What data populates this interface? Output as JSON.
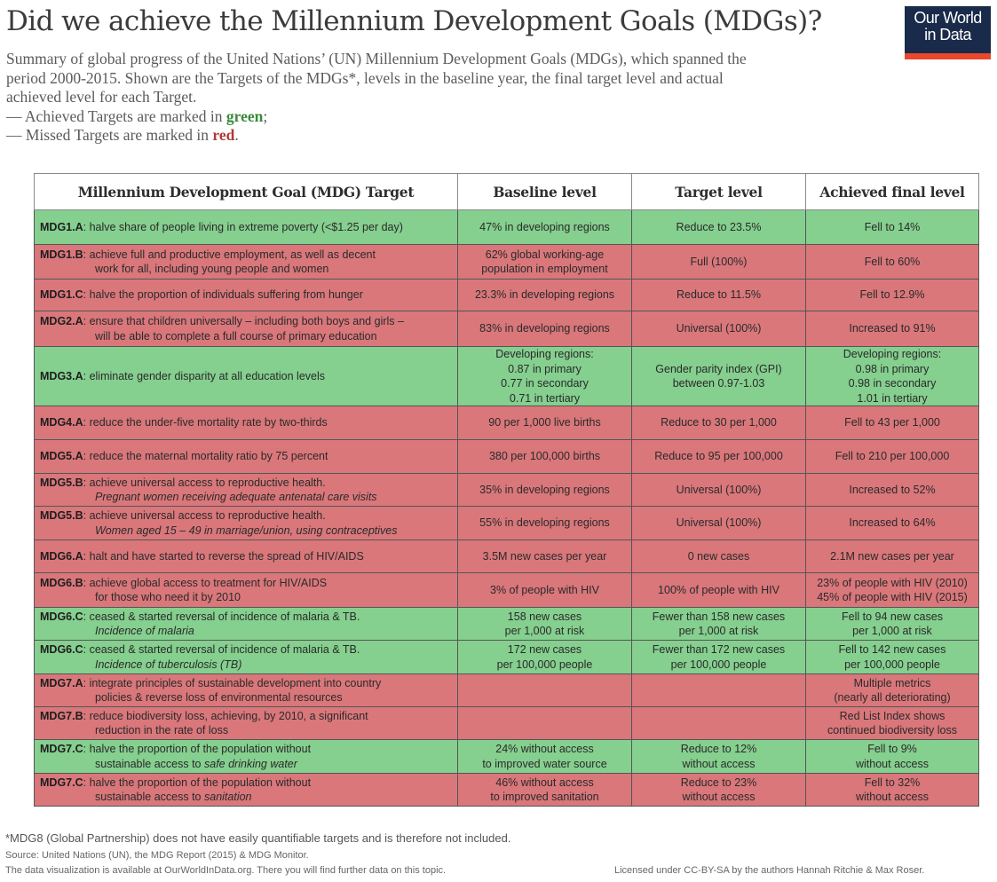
{
  "header": {
    "title": "Did we achieve the Millennium Development Goals (MDGs)?",
    "subtitle_lines": [
      "Summary of global progress of the United Nations’ (UN) Millennium Development Goals (MDGs), which spanned the",
      "period 2000-2015. Shown are the Targets of the MDGs*, levels in the baseline year, the final target level and actual",
      "achieved level for each Target."
    ],
    "legend": {
      "achieved_prefix": "— Achieved Targets are marked in ",
      "achieved_word": "green",
      "achieved_suffix": ";",
      "missed_prefix": "— Missed Targets are marked in ",
      "missed_word": "red",
      "missed_suffix": "."
    },
    "logo": {
      "line1": "Our World",
      "line2": "in Data"
    }
  },
  "colors": {
    "achieved": "#85cf8f",
    "missed": "#d9777b",
    "logo_bg": "#1a2a4a",
    "logo_bar": "#e8482c"
  },
  "chart_data": {
    "type": "table",
    "title": "Did we achieve the Millennium Development Goals (MDGs)?",
    "columns": [
      "Millennium Development Goal (MDG) Target",
      "Baseline level",
      "Target level",
      "Achieved final level"
    ],
    "rows": [
      {
        "code": "MDG1.A",
        "status": "achieved",
        "target": "halve share of people living in extreme poverty (<$1.25 per day)",
        "target_detail": "",
        "baseline": [
          "47% in developing regions"
        ],
        "target_level": [
          "Reduce to 23.5%"
        ],
        "achieved": [
          "Fell to 14%"
        ]
      },
      {
        "code": "MDG1.B",
        "status": "missed",
        "target": "achieve full and productive employment, as well as decent",
        "target_detail": "work for all, including young people and women",
        "baseline": [
          "62% global working-age",
          "population in employment"
        ],
        "target_level": [
          "Full (100%)"
        ],
        "achieved": [
          "Fell to 60%"
        ]
      },
      {
        "code": "MDG1.C",
        "status": "missed",
        "target": "halve the proportion of individuals suffering from hunger",
        "target_detail": "",
        "baseline": [
          "23.3% in developing regions"
        ],
        "target_level": [
          "Reduce to 11.5%"
        ],
        "achieved": [
          "Fell to 12.9%"
        ]
      },
      {
        "code": "MDG2.A",
        "status": "missed",
        "target": "ensure that children universally – including both boys and girls –",
        "target_detail": "will be able to complete a full course of primary education",
        "baseline": [
          "83% in developing regions"
        ],
        "target_level": [
          "Universal (100%)"
        ],
        "achieved": [
          "Increased to 91%"
        ]
      },
      {
        "code": "MDG3.A",
        "status": "achieved",
        "target": "eliminate gender disparity at all education levels",
        "target_detail": "",
        "baseline": [
          "Developing regions:",
          "0.87 in primary",
          "0.77 in secondary",
          "0.71 in tertiary"
        ],
        "target_level": [
          "Gender parity index (GPI)",
          "between 0.97-1.03"
        ],
        "achieved": [
          "Developing regions:",
          "0.98 in primary",
          "0.98 in secondary",
          "1.01 in tertiary"
        ]
      },
      {
        "code": "MDG4.A",
        "status": "missed",
        "target": "reduce the under-five mortality rate by two-thirds",
        "target_detail": "",
        "baseline": [
          "90 per 1,000 live births"
        ],
        "target_level": [
          "Reduce to 30 per 1,000"
        ],
        "achieved": [
          "Fell to 43 per 1,000"
        ]
      },
      {
        "code": "MDG5.A",
        "status": "missed",
        "target": "reduce the maternal mortality ratio by 75 percent",
        "target_detail": "",
        "baseline": [
          "380 per 100,000 births"
        ],
        "target_level": [
          "Reduce to 95 per 100,000"
        ],
        "achieved": [
          "Fell to 210 per 100,000"
        ]
      },
      {
        "code": "MDG5.B",
        "status": "missed",
        "target": "achieve universal access to reproductive health.",
        "target_detail": "Pregnant women receiving adequate antenatal care visits",
        "detail_italic": true,
        "baseline": [
          "35% in developing regions"
        ],
        "target_level": [
          "Universal (100%)"
        ],
        "achieved": [
          "Increased to 52%"
        ]
      },
      {
        "code": "MDG5.B",
        "status": "missed",
        "target": "achieve universal access to reproductive health.",
        "target_detail": "Women aged 15 – 49 in marriage/union, using contraceptives",
        "detail_italic": true,
        "baseline": [
          "55% in developing regions"
        ],
        "target_level": [
          "Universal (100%)"
        ],
        "achieved": [
          "Increased to 64%"
        ]
      },
      {
        "code": "MDG6.A",
        "status": "missed",
        "target": "halt and have started to reverse the spread of HIV/AIDS",
        "target_detail": "",
        "baseline": [
          "3.5M new cases per year"
        ],
        "target_level": [
          "0 new cases"
        ],
        "achieved": [
          "2.1M new cases per year"
        ]
      },
      {
        "code": "MDG6.B",
        "status": "missed",
        "target": "achieve global access to treatment for HIV/AIDS",
        "target_detail": "for those who need it by 2010",
        "baseline": [
          "3% of people with HIV"
        ],
        "target_level": [
          "100% of people with HIV"
        ],
        "achieved": [
          "23% of people with HIV (2010)",
          "45% of people with HIV (2015)"
        ]
      },
      {
        "code": "MDG6.C",
        "status": "achieved",
        "target": "ceased & started reversal of incidence of malaria & TB.",
        "target_detail": "Incidence of malaria",
        "detail_italic": true,
        "baseline": [
          "158 new cases",
          "per 1,000 at risk"
        ],
        "target_level": [
          "Fewer than 158 new cases",
          "per 1,000 at risk"
        ],
        "achieved": [
          "Fell to 94 new cases",
          "per 1,000 at risk"
        ]
      },
      {
        "code": "MDG6.C",
        "status": "achieved",
        "target": "ceased & started reversal of incidence of malaria & TB.",
        "target_detail": "Incidence of tuberculosis (TB)",
        "detail_italic": true,
        "baseline": [
          "172 new cases",
          "per 100,000 people"
        ],
        "target_level": [
          "Fewer than 172 new cases",
          "per 100,000 people"
        ],
        "achieved": [
          "Fell to 142 new cases",
          "per 100,000 people"
        ]
      },
      {
        "code": "MDG7.A",
        "status": "missed",
        "target": "integrate principles of sustainable development into country",
        "target_detail": "policies & reverse loss of environmental resources",
        "baseline": [],
        "target_level": [],
        "achieved": [
          "Multiple metrics",
          "(nearly all deteriorating)"
        ]
      },
      {
        "code": "MDG7.B",
        "status": "missed",
        "target": "reduce biodiversity loss, achieving, by 2010, a significant",
        "target_detail": "reduction in the rate of loss",
        "baseline": [],
        "target_level": [],
        "achieved": [
          "Red List Index shows",
          "continued biodiversity loss"
        ]
      },
      {
        "code": "MDG7.C",
        "status": "achieved",
        "target": "halve the proportion of the population without",
        "target_detail_plain": "sustainable access to ",
        "target_detail": "safe drinking water",
        "detail_italic": true,
        "baseline": [
          "24% without access",
          "to improved water source"
        ],
        "target_level": [
          "Reduce to 12%",
          "without access"
        ],
        "achieved": [
          "Fell to 9%",
          "without access"
        ]
      },
      {
        "code": "MDG7.C",
        "status": "missed",
        "target": "halve the proportion of the population without",
        "target_detail_plain": "sustainable access to ",
        "target_detail": "sanitation",
        "detail_italic": true,
        "baseline": [
          "46% without access",
          "to improved sanitation"
        ],
        "target_level": [
          "Reduce to 23%",
          "without access"
        ],
        "achieved": [
          "Fell to 32%",
          "without access"
        ]
      }
    ]
  },
  "footer": {
    "note": "*MDG8 (Global Partnership) does not have easily quantifiable targets and is therefore not included.",
    "source": "Source: United Nations (UN), the MDG Report (2015) & MDG Monitor.",
    "availability": "The data visualization is available at OurWorldInData.org. There you will find further data on this topic.",
    "license": "Licensed under CC-BY-SA by the authors Hannah Ritchie & Max Roser."
  }
}
